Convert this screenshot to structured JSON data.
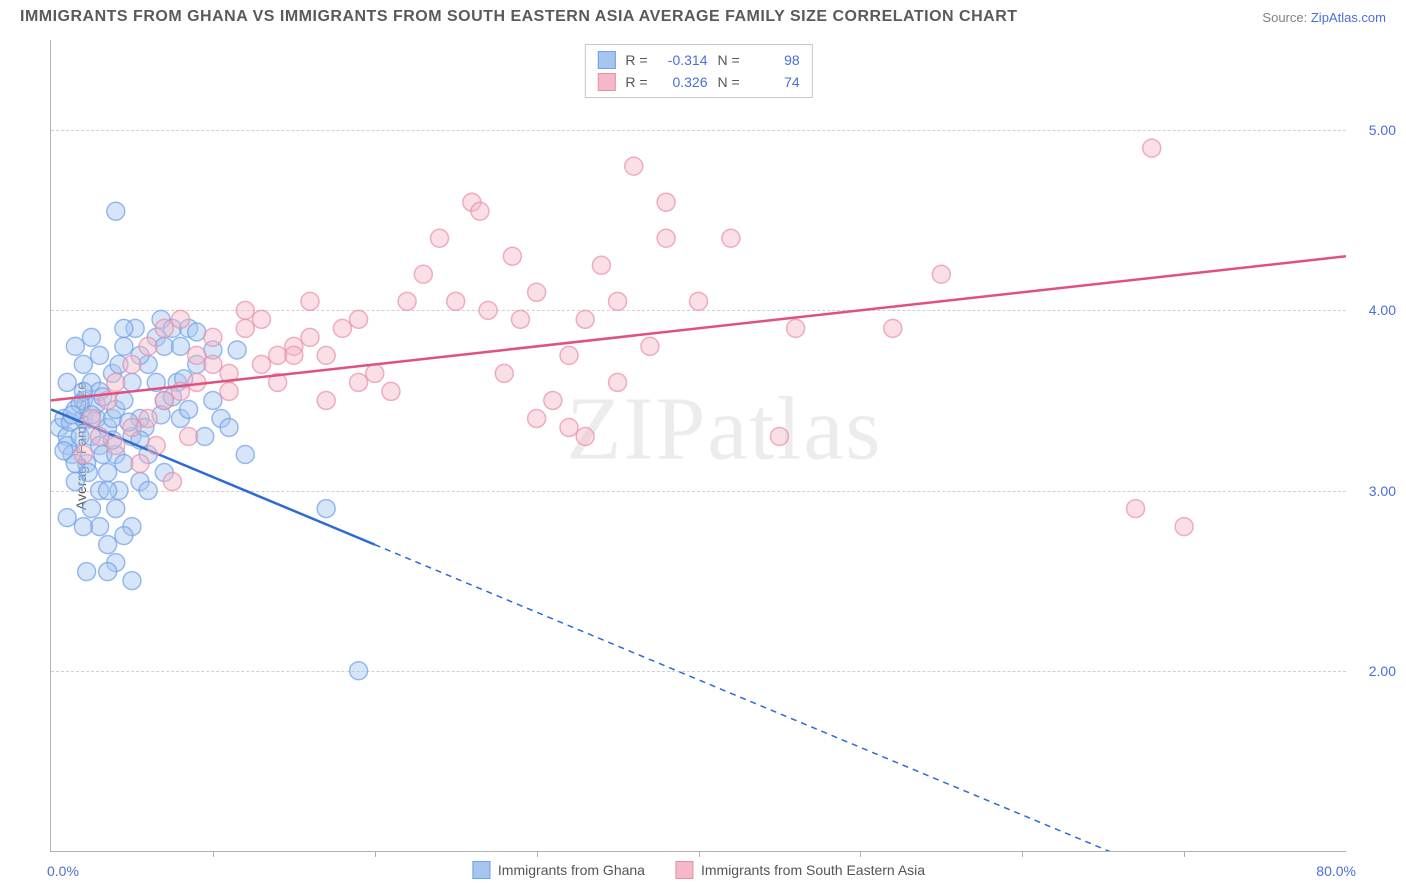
{
  "title": "IMMIGRANTS FROM GHANA VS IMMIGRANTS FROM SOUTH EASTERN ASIA AVERAGE FAMILY SIZE CORRELATION CHART",
  "source_label": "Source:",
  "source_name": "ZipAtlas.com",
  "watermark": "ZIPatlas",
  "chart": {
    "type": "scatter",
    "background_color": "#ffffff",
    "grid_color": "#d0d0d0",
    "axis_color": "#b0b0b0",
    "xlim": [
      0,
      80
    ],
    "ylim": [
      1.0,
      5.5
    ],
    "xaxis_min_label": "0.0%",
    "xaxis_max_label": "80.0%",
    "yticks": [
      2.0,
      3.0,
      4.0,
      5.0
    ],
    "ytick_labels": [
      "2.00",
      "3.00",
      "4.00",
      "5.00"
    ],
    "xticks": [
      10,
      20,
      30,
      40,
      50,
      60,
      70
    ],
    "ylabel": "Average Family Size",
    "label_fontsize": 14,
    "tick_color": "#4a6fd8",
    "marker_radius": 9,
    "marker_opacity": 0.45,
    "line_width": 2.5
  },
  "series": [
    {
      "name": "Immigrants from Ghana",
      "color": "#6fa0e8",
      "fill": "#a6c5ef",
      "line_color": "#2d6bd4",
      "r_label": "R =",
      "r_value": "-0.314",
      "n_label": "N =",
      "n_value": "98",
      "trend": {
        "x1": 0,
        "y1": 3.45,
        "x2": 20,
        "y2": 2.7,
        "x2_ext": 76,
        "y2_ext": 0.6
      },
      "points": [
        [
          0.5,
          3.35
        ],
        [
          0.8,
          3.4
        ],
        [
          1.0,
          3.3
        ],
        [
          1.2,
          3.38
        ],
        [
          1.0,
          3.25
        ],
        [
          1.5,
          3.45
        ],
        [
          1.3,
          3.2
        ],
        [
          1.8,
          3.3
        ],
        [
          2.0,
          3.4
        ],
        [
          2.2,
          3.15
        ],
        [
          2.0,
          3.5
        ],
        [
          2.5,
          3.3
        ],
        [
          2.3,
          3.1
        ],
        [
          2.8,
          3.4
        ],
        [
          3.0,
          3.25
        ],
        [
          2.5,
          3.6
        ],
        [
          3.2,
          3.2
        ],
        [
          3.0,
          3.55
        ],
        [
          3.5,
          3.35
        ],
        [
          3.8,
          3.4
        ],
        [
          3.5,
          3.1
        ],
        [
          4.0,
          3.45
        ],
        [
          4.0,
          3.2
        ],
        [
          4.5,
          3.5
        ],
        [
          4.2,
          3.0
        ],
        [
          5.0,
          3.3
        ],
        [
          4.5,
          3.8
        ],
        [
          5.0,
          3.6
        ],
        [
          5.5,
          3.4
        ],
        [
          5.2,
          3.9
        ],
        [
          6.0,
          3.7
        ],
        [
          5.8,
          3.35
        ],
        [
          6.5,
          3.85
        ],
        [
          6.0,
          3.2
        ],
        [
          7.0,
          3.8
        ],
        [
          6.8,
          3.95
        ],
        [
          7.5,
          3.9
        ],
        [
          7.0,
          3.5
        ],
        [
          8.0,
          3.8
        ],
        [
          7.8,
          3.6
        ],
        [
          8.5,
          3.9
        ],
        [
          8.0,
          3.4
        ],
        [
          9.0,
          3.7
        ],
        [
          9.5,
          3.3
        ],
        [
          10.0,
          3.5
        ],
        [
          3.0,
          2.8
        ],
        [
          4.0,
          2.9
        ],
        [
          3.5,
          2.7
        ],
        [
          2.5,
          2.9
        ],
        [
          4.0,
          2.6
        ],
        [
          5.0,
          2.8
        ],
        [
          3.0,
          3.0
        ],
        [
          5.5,
          3.05
        ],
        [
          4.0,
          4.55
        ],
        [
          4.5,
          3.9
        ],
        [
          1.5,
          3.8
        ],
        [
          2.0,
          3.7
        ],
        [
          3.0,
          3.75
        ],
        [
          1.0,
          3.6
        ],
        [
          2.5,
          3.85
        ],
        [
          3.5,
          3.0
        ],
        [
          6.0,
          3.0
        ],
        [
          4.5,
          3.15
        ],
        [
          7.0,
          3.1
        ],
        [
          8.5,
          3.45
        ],
        [
          2.0,
          3.55
        ],
        [
          1.5,
          3.05
        ],
        [
          3.8,
          3.65
        ],
        [
          4.2,
          3.7
        ],
        [
          5.5,
          3.75
        ],
        [
          6.5,
          3.6
        ],
        [
          10.5,
          3.4
        ],
        [
          11.0,
          3.35
        ],
        [
          12.0,
          3.2
        ],
        [
          19.0,
          2.0
        ],
        [
          17.0,
          2.9
        ],
        [
          2.2,
          2.55
        ],
        [
          3.5,
          2.55
        ],
        [
          5.0,
          2.5
        ],
        [
          1.0,
          2.85
        ],
        [
          2.0,
          2.8
        ],
        [
          4.5,
          2.75
        ],
        [
          1.5,
          3.15
        ],
        [
          2.8,
          3.48
        ],
        [
          3.2,
          3.52
        ],
        [
          1.8,
          3.48
        ],
        [
          0.8,
          3.22
        ],
        [
          1.3,
          3.42
        ],
        [
          2.5,
          3.42
        ],
        [
          3.8,
          3.28
        ],
        [
          4.8,
          3.38
        ],
        [
          5.5,
          3.28
        ],
        [
          6.8,
          3.42
        ],
        [
          7.5,
          3.52
        ],
        [
          8.2,
          3.62
        ],
        [
          9.0,
          3.88
        ],
        [
          10.0,
          3.78
        ],
        [
          11.5,
          3.78
        ]
      ]
    },
    {
      "name": "Immigrants from South Eastern Asia",
      "color": "#e890a8",
      "fill": "#f4b8c8",
      "line_color": "#e05080",
      "r_label": "R =",
      "r_value": "0.326",
      "n_label": "N =",
      "n_value": "74",
      "trend": {
        "x1": 0,
        "y1": 3.5,
        "x2": 80,
        "y2": 4.3
      },
      "points": [
        [
          2.0,
          3.2
        ],
        [
          3.0,
          3.3
        ],
        [
          2.5,
          3.4
        ],
        [
          4.0,
          3.25
        ],
        [
          3.5,
          3.5
        ],
        [
          5.0,
          3.35
        ],
        [
          4.0,
          3.6
        ],
        [
          6.0,
          3.4
        ],
        [
          5.0,
          3.7
        ],
        [
          7.0,
          3.5
        ],
        [
          6.0,
          3.8
        ],
        [
          8.0,
          3.55
        ],
        [
          7.0,
          3.9
        ],
        [
          9.0,
          3.6
        ],
        [
          8.0,
          3.95
        ],
        [
          10.0,
          3.7
        ],
        [
          9.0,
          3.75
        ],
        [
          11.0,
          3.65
        ],
        [
          10.0,
          3.85
        ],
        [
          12.0,
          3.9
        ],
        [
          11.0,
          3.55
        ],
        [
          13.0,
          3.7
        ],
        [
          12.0,
          4.0
        ],
        [
          14.0,
          3.75
        ],
        [
          13.0,
          3.95
        ],
        [
          15.0,
          3.8
        ],
        [
          14.0,
          3.6
        ],
        [
          16.0,
          3.85
        ],
        [
          15.0,
          3.75
        ],
        [
          17.0,
          3.5
        ],
        [
          16.0,
          4.05
        ],
        [
          18.0,
          3.9
        ],
        [
          17.0,
          3.75
        ],
        [
          20.0,
          3.65
        ],
        [
          19.0,
          3.95
        ],
        [
          22.0,
          4.05
        ],
        [
          21.0,
          3.55
        ],
        [
          24.0,
          4.4
        ],
        [
          23.0,
          4.2
        ],
        [
          26.0,
          4.6
        ],
        [
          25.0,
          4.05
        ],
        [
          26.5,
          4.55
        ],
        [
          28.0,
          3.65
        ],
        [
          27.0,
          4.0
        ],
        [
          28.5,
          4.3
        ],
        [
          30.0,
          4.1
        ],
        [
          29.0,
          3.95
        ],
        [
          32.0,
          3.75
        ],
        [
          31.0,
          3.5
        ],
        [
          34.0,
          4.25
        ],
        [
          33.0,
          3.3
        ],
        [
          36.0,
          4.8
        ],
        [
          35.0,
          3.6
        ],
        [
          38.0,
          4.6
        ],
        [
          37.0,
          3.8
        ],
        [
          30.0,
          3.4
        ],
        [
          33.0,
          3.95
        ],
        [
          35.0,
          4.05
        ],
        [
          38.0,
          4.4
        ],
        [
          40.0,
          4.05
        ],
        [
          45.0,
          3.3
        ],
        [
          42.0,
          4.4
        ],
        [
          46.0,
          3.9
        ],
        [
          52.0,
          3.9
        ],
        [
          55.0,
          4.2
        ],
        [
          68.0,
          4.9
        ],
        [
          67.0,
          2.9
        ],
        [
          70.0,
          2.8
        ],
        [
          5.5,
          3.15
        ],
        [
          6.5,
          3.25
        ],
        [
          7.5,
          3.05
        ],
        [
          8.5,
          3.3
        ],
        [
          32.0,
          3.35
        ],
        [
          19.0,
          3.6
        ]
      ]
    }
  ]
}
